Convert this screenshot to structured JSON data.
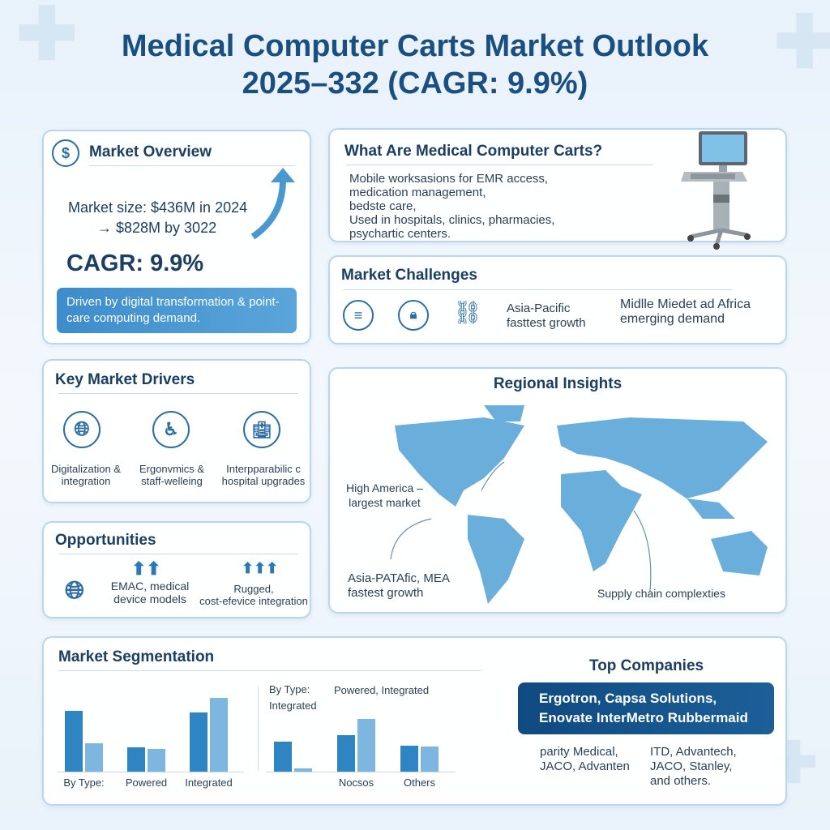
{
  "title": {
    "line1": "Medical Computer Carts Market Outlook",
    "line2": "2025–332 (CAGR: 9.9%)"
  },
  "overview": {
    "heading": "Market Overview",
    "icon": "dollar-icon",
    "size_line1": "Market size: $436M in 2024",
    "size_line2": "→ $828M by 3022",
    "cagr": "CAGR: 9.9%",
    "driven": "Driven by digital transformation & point-care computing demand."
  },
  "what": {
    "heading": "What Are Medical Computer Carts?",
    "lines": [
      "Mobile worksasions for EMR access,",
      "medication management,",
      "bedste care,",
      "Used in hospitals, clinics, pharmacies,",
      "psychartic centers."
    ]
  },
  "challenges": {
    "heading": "Market Challenges",
    "icons": [
      "database-icon",
      "lock-icon",
      "broken-link-icon"
    ],
    "item1": [
      "Asia-Pacific",
      "fasttest growth"
    ],
    "item2": [
      "Midlle Miedet ad Africa",
      "emerging demand"
    ]
  },
  "drivers": {
    "heading": "Key Market Drivers",
    "items": [
      {
        "icon": "globe-icon",
        "l1": "Digitalization &",
        "l2": "integration"
      },
      {
        "icon": "ergonomics-icon",
        "l1": "Ergonvmics &",
        "l2": "staff-welleing"
      },
      {
        "icon": "hospital-icon",
        "l1": "Interpparabilic c",
        "l2": "hospital upgrades"
      }
    ]
  },
  "opportunities": {
    "heading": "Opportunities",
    "item1": [
      "EMAC, medical",
      "device models"
    ],
    "item2": [
      "Rugged,",
      "cost-efevice integration"
    ]
  },
  "regional": {
    "heading": "Regional Insights",
    "na": [
      "High America –",
      "largest market"
    ],
    "apac": [
      "Asia-PATAfic, MEA",
      "fastest growth"
    ],
    "supply": "Supply chain complexties"
  },
  "segmentation": {
    "heading": "Market Segmentation",
    "chart2_label1": "By Type:",
    "chart2_label2": "Integrated",
    "chart2_label3": "Powered, Integrated"
  },
  "companies": {
    "heading": "Top Companies",
    "featured": [
      "Ergotron, Capsa Solutions,",
      "Enovate InterMetro Rubbermaid"
    ],
    "col1": [
      "parity Medical,",
      "JACO, Advanten"
    ],
    "col2": [
      "ITD, Advantech,",
      "JACO, Stanley,",
      "and others."
    ]
  },
  "colors": {
    "dark_bar": "#2f84c2",
    "light_bar": "#7db7e0",
    "title": "#1b4f82",
    "map": "#6aaedc"
  },
  "chart_data": [
    {
      "type": "bar",
      "categories": [
        "By Type:",
        "Powered",
        "Integrated"
      ],
      "series": [
        {
          "values": [
            75,
            30,
            73
          ]
        },
        {
          "values": [
            35,
            28,
            91
          ]
        }
      ]
    },
    {
      "type": "bar",
      "categories": [
        "",
        "Nocsos",
        "Others"
      ],
      "series": [
        {
          "values": [
            37,
            45,
            32
          ]
        },
        {
          "values": [
            4,
            65,
            31
          ]
        }
      ]
    }
  ]
}
